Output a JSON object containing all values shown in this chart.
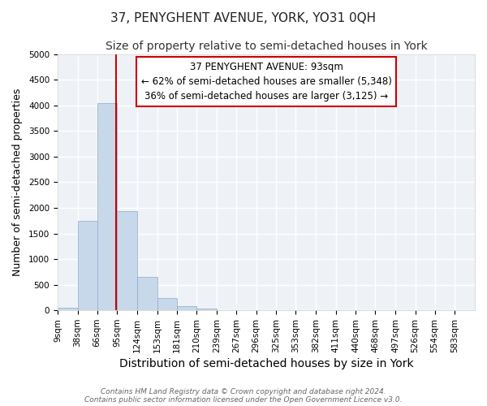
{
  "title": "37, PENYGHENT AVENUE, YORK, YO31 0QH",
  "subtitle": "Size of property relative to semi-detached houses in York",
  "xlabel": "Distribution of semi-detached houses by size in York",
  "ylabel": "Number of semi-detached properties",
  "bin_edges": [
    9,
    38,
    66,
    95,
    124,
    153,
    181,
    210,
    239,
    267,
    296,
    325,
    353,
    382,
    411,
    440,
    468,
    497,
    526,
    554,
    583
  ],
  "bar_heights": [
    50,
    1740,
    4050,
    1940,
    660,
    240,
    85,
    40,
    0,
    0,
    0,
    0,
    0,
    0,
    0,
    0,
    0,
    0,
    0,
    0
  ],
  "bar_color": "#c8d8eb",
  "bar_edge_color": "#8aaac8",
  "property_size": 93,
  "property_line_color": "#cc0000",
  "annotation_line1": "37 PENYGHENT AVENUE: 93sqm",
  "annotation_line2": "← 62% of semi-detached houses are smaller (5,348)",
  "annotation_line3": "36% of semi-detached houses are larger (3,125) →",
  "annotation_box_color": "#ffffff",
  "annotation_box_edge": "#cc0000",
  "ylim": [
    0,
    5000
  ],
  "yticks": [
    0,
    500,
    1000,
    1500,
    2000,
    2500,
    3000,
    3500,
    4000,
    4500,
    5000
  ],
  "background_color": "#eef2f7",
  "grid_color": "#ffffff",
  "footer_line1": "Contains HM Land Registry data © Crown copyright and database right 2024.",
  "footer_line2": "Contains public sector information licensed under the Open Government Licence v3.0.",
  "title_fontsize": 11,
  "subtitle_fontsize": 10,
  "xlabel_fontsize": 10,
  "ylabel_fontsize": 9,
  "tick_fontsize": 7.5,
  "annotation_fontsize": 8.5,
  "footer_fontsize": 6.5
}
